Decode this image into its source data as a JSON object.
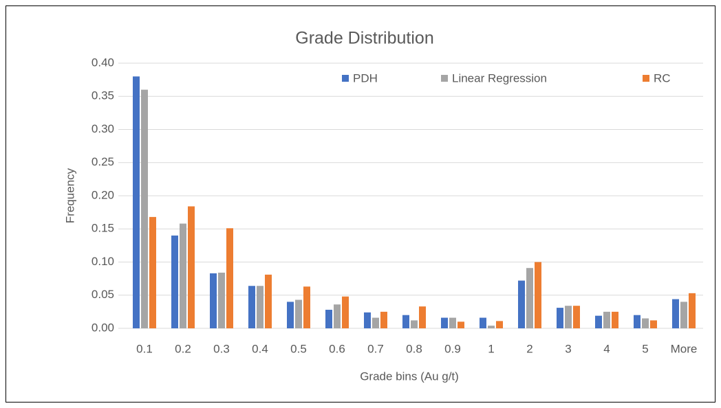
{
  "chart_data": {
    "type": "bar",
    "title": "Grade Distribution",
    "x_label": "Grade bins (Au g/t)",
    "y_label": "Frequency",
    "categories": [
      "0.1",
      "0.2",
      "0.3",
      "0.4",
      "0.5",
      "0.6",
      "0.7",
      "0.8",
      "0.9",
      "1",
      "2",
      "3",
      "4",
      "5",
      "More"
    ],
    "series": [
      {
        "name": "PDH",
        "color": "#4472c4",
        "values": [
          0.38,
          0.14,
          0.083,
          0.064,
          0.04,
          0.028,
          0.024,
          0.02,
          0.016,
          0.016,
          0.072,
          0.031,
          0.019,
          0.02,
          0.044
        ]
      },
      {
        "name": "Linear Regression",
        "color": "#a5a5a5",
        "values": [
          0.36,
          0.158,
          0.084,
          0.064,
          0.043,
          0.036,
          0.016,
          0.012,
          0.016,
          0.004,
          0.091,
          0.034,
          0.025,
          0.015,
          0.04
        ]
      },
      {
        "name": "RC",
        "color": "#ed7d31",
        "values": [
          0.168,
          0.184,
          0.151,
          0.081,
          0.063,
          0.048,
          0.025,
          0.033,
          0.01,
          0.011,
          0.1,
          0.034,
          0.025,
          0.012,
          0.053
        ]
      }
    ],
    "ylim": [
      0,
      0.4
    ],
    "yticks": [
      {
        "value": 0,
        "label": "0.00"
      },
      {
        "value": 0.05,
        "label": "0.05"
      },
      {
        "value": 0.1,
        "label": "0.10"
      },
      {
        "value": 0.15,
        "label": "0.15"
      },
      {
        "value": 0.2,
        "label": "0.20"
      },
      {
        "value": 0.25,
        "label": "0.25"
      },
      {
        "value": 0.3,
        "label": "0.30"
      },
      {
        "value": 0.35,
        "label": "0.35"
      },
      {
        "value": 0.4,
        "label": "0.40"
      }
    ],
    "grid": true,
    "legend": "top"
  }
}
